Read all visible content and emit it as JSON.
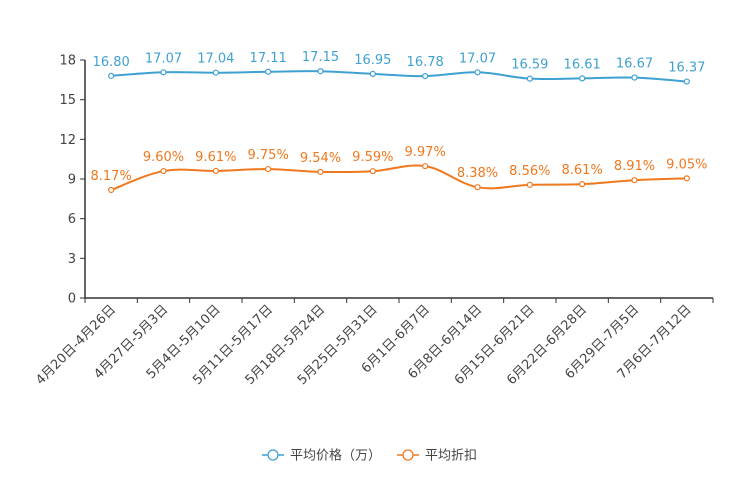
{
  "chart_data": {
    "type": "line",
    "categories": [
      "4月20日-4月26日",
      "4月27日-5月3日",
      "5月4日-5月10日",
      "5月11日-5月17日",
      "5月18日-5月24日",
      "5月25日-5月31日",
      "6月1日-6月7日",
      "6月8日-6月14日",
      "6月15日-6月21日",
      "6月22日-6月28日",
      "6月29日-7月5日",
      "7月6日-7月12日"
    ],
    "series": [
      {
        "name": "平均价格（万）",
        "color": "#3fa1d2",
        "values": [
          16.8,
          17.07,
          17.04,
          17.11,
          17.15,
          16.95,
          16.78,
          17.07,
          16.59,
          16.61,
          16.67,
          16.37
        ],
        "labels": [
          "16.80",
          "17.07",
          "17.04",
          "17.11",
          "17.15",
          "16.95",
          "16.78",
          "17.07",
          "16.59",
          "16.61",
          "16.67",
          "16.37"
        ]
      },
      {
        "name": "平均折扣",
        "color": "#f0781e",
        "values": [
          8.17,
          9.6,
          9.61,
          9.75,
          9.54,
          9.59,
          9.97,
          8.38,
          8.56,
          8.61,
          8.91,
          9.05
        ],
        "labels": [
          "8.17%",
          "9.60%",
          "9.61%",
          "9.75%",
          "9.54%",
          "9.59%",
          "9.97%",
          "8.38%",
          "8.56%",
          "8.61%",
          "8.91%",
          "9.05%"
        ]
      }
    ],
    "ylim": [
      0,
      18
    ],
    "yticks": [
      0,
      3,
      6,
      9,
      12,
      15,
      18
    ],
    "title": "",
    "xlabel": "",
    "ylabel": "",
    "legend_position": "bottom-center"
  }
}
